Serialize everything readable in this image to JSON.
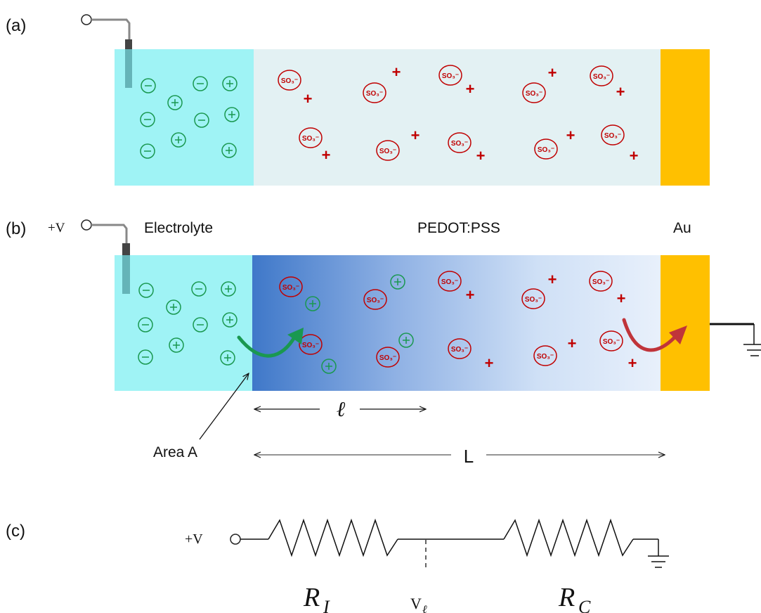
{
  "panels": {
    "a": "(a)",
    "b": "(b)",
    "c": "(c)"
  },
  "labels": {
    "electrolyte": "Electrolyte",
    "pedot": "PEDOT:PSS",
    "au": "Au",
    "plus_v_b": "+V",
    "plus_v_c": "+V",
    "area": "Area A",
    "ell": "ℓ",
    "L": "L",
    "R_I_main": "R",
    "R_I_sub": "I",
    "V_main": "V",
    "V_sub": "ℓ",
    "R_C_main": "R",
    "R_C_sub": "C"
  },
  "ion_text": {
    "anion": "−",
    "cation": "+",
    "sulfonate": "SO₃⁻",
    "hole": "+"
  },
  "colors": {
    "electrolyte": "#9ff3f5",
    "pedot_light": "#e3f1f3",
    "au": "#ffc000",
    "green": "#1a9850",
    "red": "#c00000",
    "blue_dark": "#3c78c8"
  }
}
